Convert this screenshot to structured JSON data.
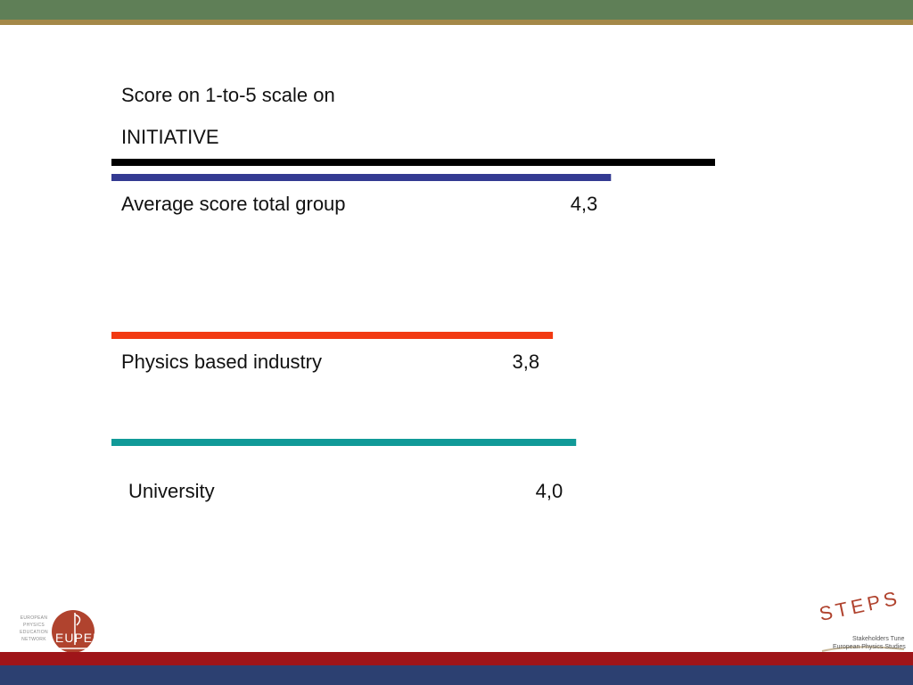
{
  "chart_data": {
    "type": "bar",
    "orientation": "horizontal",
    "title": "Score on 1-to-5 scale on",
    "subtitle": "INITIATIVE",
    "reference_bar_color": "#000000",
    "categories": [
      "Average score total group",
      "Physics based industry",
      "University"
    ],
    "values": [
      4.3,
      3.8,
      4.0
    ],
    "value_labels": [
      "4,3",
      "3,8",
      "4,0"
    ],
    "colors": [
      "#333a92",
      "#f23a12",
      "#119a98"
    ],
    "xlim": [
      0,
      5
    ],
    "grid": false
  },
  "logos": {
    "eupen": {
      "mark": "EUPEN",
      "lines": [
        "EUROPEAN",
        "PHYSICS",
        "EDUCATION",
        "NETWORK"
      ],
      "color": "#b0432e"
    },
    "steps": {
      "mark": "STEPS",
      "lines": [
        "Stakeholders Tune",
        "European Physics Studies"
      ],
      "color": "#b0432e"
    }
  },
  "theme": {
    "top_band": "#5f7f57",
    "top_stripe": "#a48848",
    "bottom_red": "#9f1519",
    "bottom_blue": "#2c4071"
  }
}
